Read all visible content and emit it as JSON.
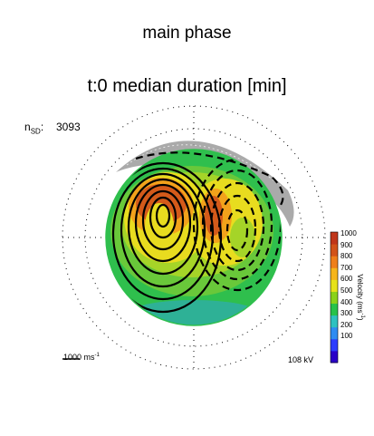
{
  "title": "main phase",
  "subtitle": "t:0 median duration [min]",
  "stats": {
    "label_main": "n",
    "label_sub": "SD",
    "value": "3093"
  },
  "scale": {
    "value": "1000",
    "unit": "ms",
    "unit_exp": "-1"
  },
  "potential": {
    "text": "108 kV"
  },
  "colorbar": {
    "title": "Velocity (ms",
    "title_exp": "-1",
    "title_close": ")",
    "ticks": [
      "1000",
      "900",
      "800",
      "700",
      "600",
      "500",
      "400",
      "300",
      "200",
      "100"
    ],
    "colors": [
      "#2a00c8",
      "#2c3cff",
      "#2f8cf2",
      "#2ec1c0",
      "#27c24a",
      "#8ad21a",
      "#e6e21a",
      "#f6b51b",
      "#ef7f1a",
      "#d2531a",
      "#c0361a"
    ]
  },
  "chart_data": {
    "type": "polar convection map",
    "title": "main phase",
    "subtitle": "t:0 median duration [min]",
    "n_sd": 3093,
    "cross_polar_cap_potential": "108 kV",
    "velocity_scale": "1000 ms-1",
    "colorbar": {
      "label": "Velocity (ms-1)",
      "range": [
        0,
        1000
      ],
      "ticks": [
        100,
        200,
        300,
        400,
        500,
        600,
        700,
        800,
        900,
        1000
      ]
    },
    "contours": {
      "positive_cell": "dashed",
      "negative_cell": "solid"
    }
  }
}
